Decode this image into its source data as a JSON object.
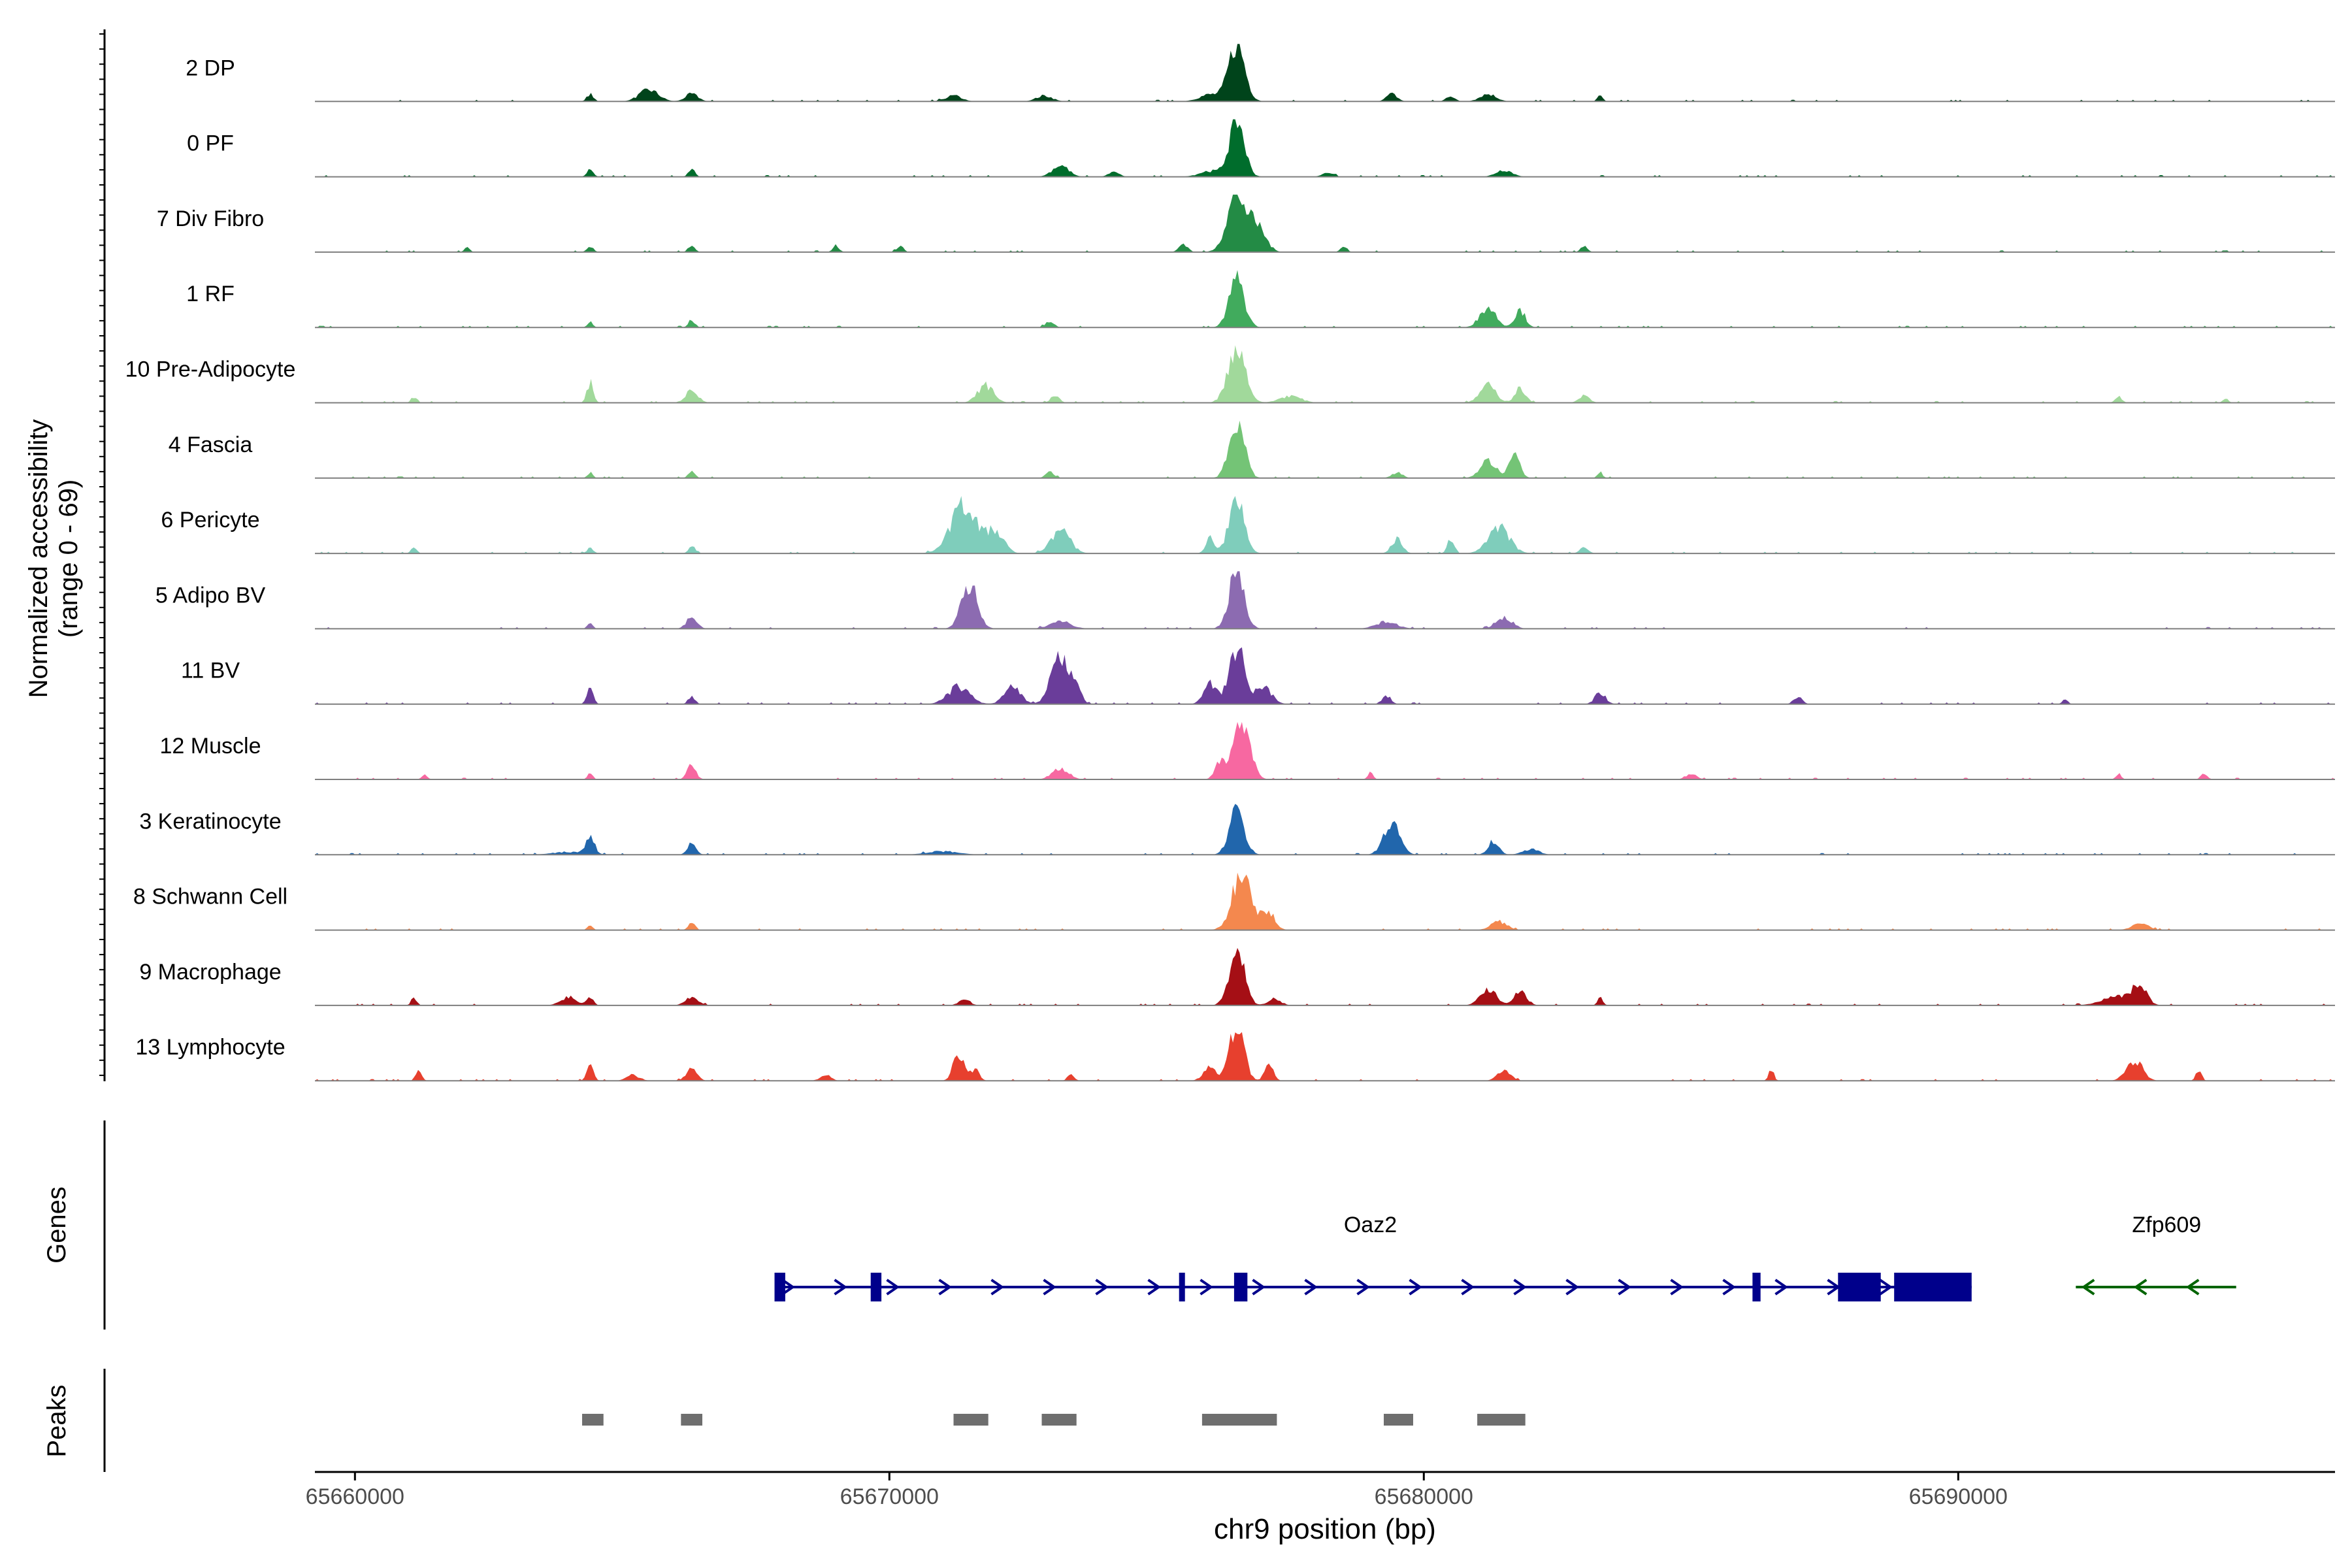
{
  "chart_data": {
    "type": "area",
    "title": "",
    "ylabel_line1": "Normalized accessibility",
    "ylabel_line2": "(range 0 - 69)",
    "xlabel": "chr9 position (bp)",
    "xlim": [
      65659250,
      65697050
    ],
    "xticks": [
      65660000,
      65670000,
      65680000,
      65690000
    ],
    "xtick_labels": [
      "65660000",
      "65670000",
      "65680000",
      "65690000"
    ],
    "ylim": [
      0,
      69
    ],
    "tracks": [
      {
        "name": "2 DP",
        "color": "#00441b",
        "peaks": [
          [
            65665500,
            0.2,
            180
          ],
          [
            65666300,
            0.13,
            120
          ],
          [
            65664400,
            0.13,
            60
          ],
          [
            65671200,
            0.1,
            150
          ],
          [
            65672900,
            0.1,
            150
          ],
          [
            65676500,
            1.0,
            150
          ],
          [
            65676000,
            0.12,
            200
          ],
          [
            65679400,
            0.13,
            100
          ],
          [
            65680500,
            0.1,
            80
          ],
          [
            65681200,
            0.13,
            150
          ],
          [
            65683300,
            0.1,
            50
          ]
        ]
      },
      {
        "name": "0 PF",
        "color": "#006d2c",
        "peaks": [
          [
            65664400,
            0.12,
            60
          ],
          [
            65666300,
            0.13,
            60
          ],
          [
            65673200,
            0.2,
            150
          ],
          [
            65674200,
            0.08,
            100
          ],
          [
            65676500,
            1.0,
            140
          ],
          [
            65676000,
            0.1,
            200
          ],
          [
            65678200,
            0.08,
            100
          ],
          [
            65681500,
            0.12,
            150
          ]
        ]
      },
      {
        "name": "7 Div Fibro",
        "color": "#238b45",
        "peaks": [
          [
            65662100,
            0.08,
            50
          ],
          [
            65664400,
            0.1,
            60
          ],
          [
            65666300,
            0.13,
            60
          ],
          [
            65669000,
            0.12,
            60
          ],
          [
            65670200,
            0.12,
            60
          ],
          [
            65675500,
            0.15,
            80
          ],
          [
            65676500,
            1.0,
            180
          ],
          [
            65676900,
            0.4,
            150
          ],
          [
            65678500,
            0.1,
            60
          ],
          [
            65683000,
            0.12,
            60
          ]
        ]
      },
      {
        "name": "1 RF",
        "color": "#41ab5d",
        "peaks": [
          [
            65664400,
            0.1,
            50
          ],
          [
            65666300,
            0.13,
            60
          ],
          [
            65673000,
            0.1,
            80
          ],
          [
            65676500,
            0.85,
            140
          ],
          [
            65681200,
            0.35,
            150
          ],
          [
            65681800,
            0.3,
            100
          ]
        ]
      },
      {
        "name": "10 Pre-Adipocyte",
        "color": "#a1d99b",
        "peaks": [
          [
            65661100,
            0.1,
            50
          ],
          [
            65664400,
            0.35,
            60
          ],
          [
            65666300,
            0.2,
            120
          ],
          [
            65671800,
            0.3,
            150
          ],
          [
            65673100,
            0.12,
            80
          ],
          [
            65676500,
            1.0,
            160
          ],
          [
            65677500,
            0.12,
            200
          ],
          [
            65681200,
            0.3,
            150
          ],
          [
            65681800,
            0.25,
            100
          ],
          [
            65683000,
            0.12,
            100
          ],
          [
            65693000,
            0.12,
            60
          ],
          [
            65695000,
            0.08,
            50
          ]
        ]
      },
      {
        "name": "4 Fascia",
        "color": "#74c476",
        "peaks": [
          [
            65664400,
            0.1,
            50
          ],
          [
            65666300,
            0.13,
            60
          ],
          [
            65673000,
            0.1,
            80
          ],
          [
            65676500,
            1.0,
            140
          ],
          [
            65679500,
            0.1,
            100
          ],
          [
            65681200,
            0.3,
            150
          ],
          [
            65681700,
            0.4,
            100
          ],
          [
            65683300,
            0.1,
            50
          ]
        ]
      },
      {
        "name": "6 Pericyte",
        "color": "#7fcdbb",
        "peaks": [
          [
            65661100,
            0.12,
            50
          ],
          [
            65664400,
            0.1,
            60
          ],
          [
            65666300,
            0.13,
            60
          ],
          [
            65671400,
            0.85,
            250
          ],
          [
            65672000,
            0.35,
            150
          ],
          [
            65673200,
            0.4,
            180
          ],
          [
            65676000,
            0.3,
            80
          ],
          [
            65676500,
            1.0,
            140
          ],
          [
            65679500,
            0.25,
            100
          ],
          [
            65680500,
            0.25,
            60
          ],
          [
            65681400,
            0.45,
            200
          ],
          [
            65683000,
            0.1,
            80
          ]
        ]
      },
      {
        "name": "5 Adipo BV",
        "color": "#8c6bb1",
        "peaks": [
          [
            65664400,
            0.1,
            50
          ],
          [
            65666300,
            0.2,
            100
          ],
          [
            65671500,
            0.75,
            150
          ],
          [
            65673200,
            0.13,
            200
          ],
          [
            65676500,
            1.0,
            140
          ],
          [
            65679300,
            0.12,
            200
          ],
          [
            65681500,
            0.2,
            150
          ]
        ]
      },
      {
        "name": "11 BV",
        "color": "#6a3d9a",
        "peaks": [
          [
            65664400,
            0.25,
            60
          ],
          [
            65666300,
            0.15,
            60
          ],
          [
            65671300,
            0.3,
            200
          ],
          [
            65672300,
            0.3,
            150
          ],
          [
            65673200,
            0.8,
            170
          ],
          [
            65673500,
            0.35,
            80
          ],
          [
            65676000,
            0.35,
            120
          ],
          [
            65676500,
            1.0,
            140
          ],
          [
            65677000,
            0.3,
            150
          ],
          [
            65679300,
            0.15,
            80
          ],
          [
            65683300,
            0.2,
            100
          ],
          [
            65687000,
            0.12,
            80
          ],
          [
            65692000,
            0.08,
            50
          ]
        ]
      },
      {
        "name": "12 Muscle",
        "color": "#f768a1",
        "peaks": [
          [
            65661300,
            0.1,
            50
          ],
          [
            65664400,
            0.1,
            50
          ],
          [
            65666300,
            0.25,
            80
          ],
          [
            65673200,
            0.2,
            150
          ],
          [
            65676200,
            0.3,
            100
          ],
          [
            65676600,
            1.0,
            150
          ],
          [
            65679000,
            0.12,
            50
          ],
          [
            65685000,
            0.1,
            100
          ],
          [
            65693000,
            0.1,
            50
          ],
          [
            65694600,
            0.1,
            60
          ]
        ]
      },
      {
        "name": "3 Keratinocyte",
        "color": "#2166ac",
        "peaks": [
          [
            65664400,
            0.3,
            80
          ],
          [
            65666300,
            0.2,
            80
          ],
          [
            65676500,
            0.75,
            140
          ],
          [
            65679400,
            0.55,
            150
          ],
          [
            65681300,
            0.25,
            100
          ],
          [
            65682000,
            0.1,
            150
          ],
          [
            65671000,
            0.06,
            300
          ],
          [
            65664000,
            0.05,
            300
          ]
        ]
      },
      {
        "name": "8 Schwann Cell",
        "color": "#f4884e",
        "peaks": [
          [
            65664400,
            0.08,
            50
          ],
          [
            65666300,
            0.15,
            60
          ],
          [
            65676600,
            1.0,
            180
          ],
          [
            65677100,
            0.3,
            120
          ],
          [
            65681400,
            0.15,
            150
          ],
          [
            65693400,
            0.12,
            150
          ]
        ]
      },
      {
        "name": "9 Macrophage",
        "color": "#a50f15",
        "peaks": [
          [
            65661100,
            0.15,
            50
          ],
          [
            65664000,
            0.15,
            150
          ],
          [
            65664400,
            0.15,
            60
          ],
          [
            65666300,
            0.15,
            120
          ],
          [
            65671400,
            0.12,
            100
          ],
          [
            65676500,
            1.0,
            140
          ],
          [
            65677200,
            0.12,
            120
          ],
          [
            65681200,
            0.3,
            150
          ],
          [
            65681800,
            0.25,
            120
          ],
          [
            65683300,
            0.15,
            50
          ],
          [
            65693000,
            0.15,
            300
          ],
          [
            65693400,
            0.35,
            120
          ]
        ]
      },
      {
        "name": "13 Lymphocyte",
        "color": "#e7402e",
        "peaks": [
          [
            65661200,
            0.2,
            50
          ],
          [
            65664400,
            0.3,
            60
          ],
          [
            65665200,
            0.1,
            120
          ],
          [
            65666300,
            0.2,
            100
          ],
          [
            65668800,
            0.1,
            100
          ],
          [
            65671300,
            0.5,
            100
          ],
          [
            65671600,
            0.2,
            80
          ],
          [
            65673400,
            0.12,
            60
          ],
          [
            65676000,
            0.25,
            120
          ],
          [
            65676500,
            1.0,
            130
          ],
          [
            65677100,
            0.3,
            80
          ],
          [
            65681500,
            0.2,
            120
          ],
          [
            65686500,
            0.2,
            50
          ],
          [
            65693300,
            0.35,
            150
          ],
          [
            65694500,
            0.2,
            50
          ]
        ]
      }
    ],
    "genes_label": "Genes",
    "genes": [
      {
        "name": "Oaz2",
        "strand": "+",
        "color": "#00008b",
        "start": 65667850,
        "end": 65690250,
        "label_x": 65679000,
        "exons": [
          [
            65667850,
            65668050
          ],
          [
            65669650,
            65669850
          ],
          [
            65675420,
            65675530
          ],
          [
            65676450,
            65676700
          ],
          [
            65686150,
            65686300
          ],
          [
            65687750,
            65688550
          ],
          [
            65688800,
            65690250
          ]
        ]
      },
      {
        "name": "Zfp609",
        "strand": "-",
        "color": "#006400",
        "start": 65692200,
        "end": 65695200,
        "label_x": 65693900,
        "exons": []
      }
    ],
    "peaks_label": "Peaks",
    "peak_regions": [
      [
        65664250,
        65664650
      ],
      [
        65666100,
        65666500
      ],
      [
        65671200,
        65671850
      ],
      [
        65672850,
        65673500
      ],
      [
        65675850,
        65677250
      ],
      [
        65679250,
        65679800
      ],
      [
        65681000,
        65681900
      ]
    ]
  }
}
